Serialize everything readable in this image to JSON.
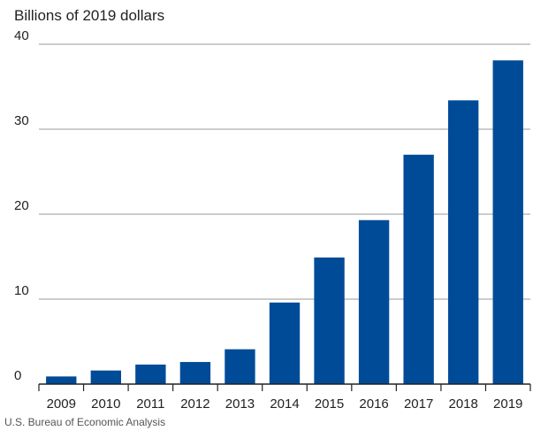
{
  "chart_data": {
    "type": "bar",
    "ylabel": "Billions of 2019 dollars",
    "categories": [
      "2009",
      "2010",
      "2011",
      "2012",
      "2013",
      "2014",
      "2015",
      "2016",
      "2017",
      "2018",
      "2019"
    ],
    "values": [
      0.9,
      1.6,
      2.3,
      2.6,
      4.1,
      9.6,
      14.9,
      19.3,
      27.0,
      33.4,
      38.1
    ],
    "ylim": [
      0,
      40
    ],
    "yticks": [
      0,
      10,
      20,
      30,
      40
    ],
    "grid": true,
    "bar_color": "#004B98",
    "source": "U.S. Bureau of Economic Analysis"
  }
}
